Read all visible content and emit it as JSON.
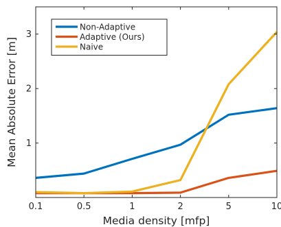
{
  "chart_data": {
    "type": "line",
    "xlabel": "Media density [mfp]",
    "ylabel": "Mean Absolute Error [m]",
    "x_scale": "categorical",
    "categories": [
      "0.1",
      "0.5",
      "1",
      "2",
      "5",
      "10"
    ],
    "ylim": [
      0,
      3.5
    ],
    "yticks": [
      "1",
      "2",
      "3"
    ],
    "grid": false,
    "legend_position": "top-left",
    "series": [
      {
        "name": "Non-Adaptive",
        "color": "#0072BD",
        "values": [
          0.36,
          0.44,
          0.71,
          0.97,
          1.52,
          1.64
        ]
      },
      {
        "name": "Adaptive (Ours)",
        "color": "#D95319",
        "values": [
          0.08,
          0.08,
          0.08,
          0.09,
          0.36,
          0.49
        ]
      },
      {
        "name": "Naive",
        "color": "#EDB120",
        "values": [
          0.1,
          0.08,
          0.11,
          0.32,
          2.08,
          3.04
        ]
      }
    ]
  }
}
